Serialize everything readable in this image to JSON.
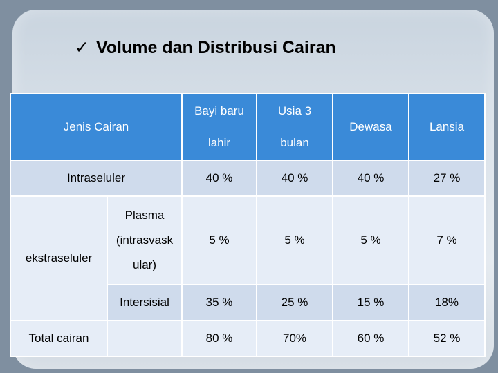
{
  "title": {
    "checkmark": "✓",
    "text": "Volume dan Distribusi Cairan"
  },
  "table": {
    "header": {
      "jenis": "Jenis Cairan",
      "bayi_line1": "Bayi baru",
      "bayi_line2": "lahir",
      "usia_line1": "Usia 3",
      "usia_line2": "bulan",
      "dewasa": "Dewasa",
      "lansia": "Lansia"
    },
    "rows": {
      "intraseluler": {
        "label": "Intraseluler",
        "values": [
          "40 %",
          "40 %",
          "40 %",
          "27 %"
        ]
      },
      "ekstraseluler": {
        "label": "ekstraseluler",
        "plasma_line1": "Plasma",
        "plasma_line2": "(intrasvask",
        "plasma_line3": "ular)",
        "plasma_values": [
          "5 %",
          "5 %",
          "5 %",
          "7 %"
        ],
        "intersisial_label": "Intersisial",
        "intersisial_values": [
          "35 %",
          "25 %",
          "15 %",
          "18%"
        ]
      },
      "total": {
        "label": "Total cairan",
        "values": [
          "80 %",
          "70%",
          "60 %",
          "52 %"
        ]
      }
    }
  }
}
